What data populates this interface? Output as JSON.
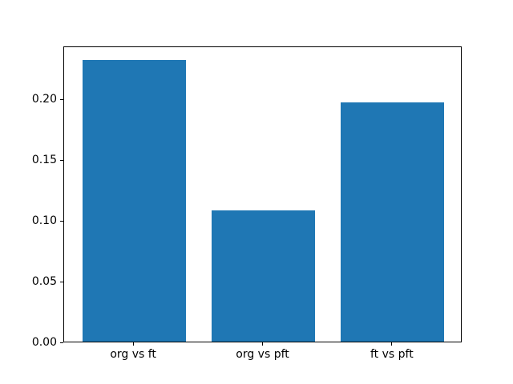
{
  "chart_data": {
    "type": "bar",
    "title": "",
    "xlabel": "",
    "ylabel": "",
    "categories": [
      "org vs ft",
      "org vs pft",
      "ft vs pft"
    ],
    "values": [
      0.232,
      0.108,
      0.197
    ],
    "bar_color": "#1f77b4",
    "axis_color": "#000000",
    "background_color": "#ffffff",
    "ylim": [
      0,
      0.2436
    ],
    "yticks": [
      {
        "value": 0.0,
        "label": "0.00"
      },
      {
        "value": 0.05,
        "label": "0.05"
      },
      {
        "value": 0.1,
        "label": "0.10"
      },
      {
        "value": 0.15,
        "label": "0.15"
      },
      {
        "value": 0.2,
        "label": "0.20"
      }
    ],
    "xlim": [
      -0.54,
      2.54
    ],
    "bar_width": 0.8,
    "grid": false,
    "legend": null
  }
}
